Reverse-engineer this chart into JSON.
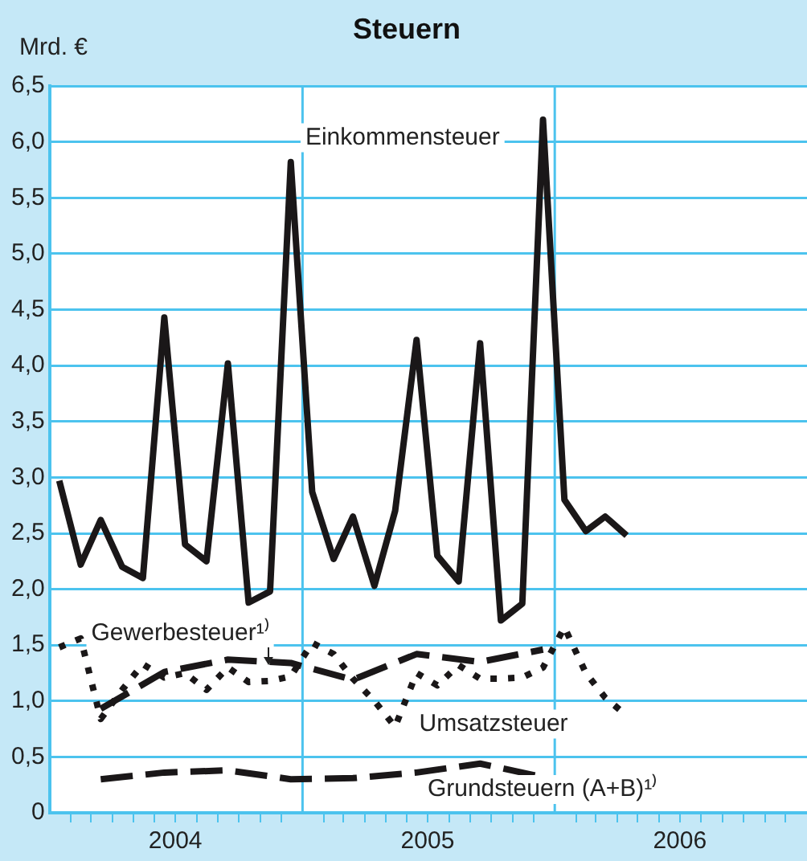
{
  "chart_data": {
    "type": "line",
    "title": "Steuern",
    "ylabel": "Mrd. €",
    "xlim": [
      "2004-01-01",
      "2007-01-01"
    ],
    "xticks": [
      {
        "value": "2004-02-01",
        "label": null
      },
      {
        "value": "2004-03-01",
        "label": null
      },
      {
        "value": "2004-04-01",
        "label": null
      },
      {
        "value": "2004-05-01",
        "label": null
      },
      {
        "value": "2004-06-01",
        "label": null
      },
      {
        "value": "2004-07-01",
        "label": "2004"
      },
      {
        "value": "2004-08-01",
        "label": null
      },
      {
        "value": "2004-09-01",
        "label": null
      },
      {
        "value": "2004-10-01",
        "label": null
      },
      {
        "value": "2004-11-01",
        "label": null
      },
      {
        "value": "2004-12-01",
        "label": null
      },
      {
        "value": "2005-02-01",
        "label": null
      },
      {
        "value": "2005-03-01",
        "label": null
      },
      {
        "value": "2005-04-01",
        "label": null
      },
      {
        "value": "2005-05-01",
        "label": null
      },
      {
        "value": "2005-06-01",
        "label": null
      },
      {
        "value": "2005-07-01",
        "label": "2005"
      },
      {
        "value": "2005-08-01",
        "label": null
      },
      {
        "value": "2005-09-01",
        "label": null
      },
      {
        "value": "2005-10-01",
        "label": null
      },
      {
        "value": "2005-11-01",
        "label": null
      },
      {
        "value": "2005-12-01",
        "label": null
      },
      {
        "value": "2006-02-01",
        "label": null
      },
      {
        "value": "2006-03-01",
        "label": null
      },
      {
        "value": "2006-04-01",
        "label": null
      },
      {
        "value": "2006-05-01",
        "label": null
      },
      {
        "value": "2006-06-01",
        "label": null
      },
      {
        "value": "2006-07-01",
        "label": "2006"
      },
      {
        "value": "2006-08-01",
        "label": null
      },
      {
        "value": "2006-09-01",
        "label": null
      },
      {
        "value": "2006-10-01",
        "label": null
      },
      {
        "value": "2006-11-01",
        "label": null
      },
      {
        "value": "2006-12-01",
        "label": null
      }
    ],
    "ylim": [
      0,
      6.5
    ],
    "yticks": [
      0,
      {
        "value": 0.5,
        "label": "0,5"
      },
      {
        "value": 1,
        "label": "1,0"
      },
      {
        "value": 1.5,
        "label": "1,5"
      },
      {
        "value": 2,
        "label": "2,0"
      },
      {
        "value": 2.5,
        "label": "2,5"
      },
      {
        "value": 3,
        "label": "3,0"
      },
      {
        "value": 3.5,
        "label": "3,5"
      },
      {
        "value": 4,
        "label": "4,0"
      },
      {
        "value": 4.5,
        "label": "4,5"
      },
      {
        "value": 5,
        "label": "5,0"
      },
      {
        "value": 5.5,
        "label": "5,5"
      },
      {
        "value": 6,
        "label": "6,0"
      },
      {
        "value": 6.5,
        "label": "6,5"
      }
    ],
    "grid": "y",
    "legend": false,
    "marker": "none",
    "ref_lines": [
      {
        "axis": "x",
        "value": "2005-01-01",
        "color": "#4cc3ee"
      },
      {
        "axis": "x",
        "value": "2006-01-01",
        "color": "#4cc3ee"
      }
    ],
    "series": [
      {
        "name": "Einkommensteuer",
        "color": "#1a1718",
        "line_style": "solid",
        "x": [
          "2004-01-15",
          "2004-02-15",
          "2004-03-15",
          "2004-04-15",
          "2004-05-15",
          "2004-06-15",
          "2004-07-15",
          "2004-08-15",
          "2004-09-15",
          "2004-10-15",
          "2004-11-15",
          "2004-12-15",
          "2005-01-15",
          "2005-02-15",
          "2005-03-15",
          "2005-04-15",
          "2005-05-15",
          "2005-06-15",
          "2005-07-15",
          "2005-08-15",
          "2005-09-15",
          "2005-10-15",
          "2005-11-15",
          "2005-12-15",
          "2006-01-15",
          "2006-02-15",
          "2006-03-15",
          "2006-04-15"
        ],
        "values": [
          2.97,
          2.22,
          2.62,
          2.2,
          2.1,
          4.43,
          2.4,
          2.25,
          4.02,
          1.88,
          1.98,
          5.82,
          2.87,
          2.27,
          2.65,
          2.03,
          2.7,
          4.23,
          2.3,
          2.07,
          4.2,
          1.72,
          1.87,
          6.2,
          2.8,
          2.52,
          2.65,
          2.48
        ]
      },
      {
        "name": "Gewerbesteuer¹⁾",
        "color": "#1a1718",
        "line_style": "dashed",
        "x": [
          "2004-03-15",
          "2004-06-15",
          "2004-09-15",
          "2004-12-15",
          "2005-03-15",
          "2005-06-15",
          "2005-09-15",
          "2005-12-15"
        ],
        "values": [
          0.93,
          1.26,
          1.37,
          1.34,
          1.19,
          1.42,
          1.35,
          1.46
        ]
      },
      {
        "name": "Umsatzsteuer",
        "color": "#1a1718",
        "line_style": "dotted",
        "x": [
          "2004-01-15",
          "2004-02-15",
          "2004-03-15",
          "2004-04-15",
          "2004-05-15",
          "2004-06-15",
          "2004-07-15",
          "2004-08-15",
          "2004-09-15",
          "2004-10-15",
          "2004-11-15",
          "2004-12-15",
          "2005-01-15",
          "2005-02-15",
          "2005-03-15",
          "2005-04-15",
          "2005-05-15",
          "2005-06-15",
          "2005-07-15",
          "2005-08-15",
          "2005-09-15",
          "2005-10-15",
          "2005-11-15",
          "2005-12-15",
          "2006-01-15",
          "2006-02-15",
          "2006-03-15",
          "2006-04-15"
        ],
        "values": [
          1.48,
          1.56,
          0.84,
          1.1,
          1.33,
          1.21,
          1.25,
          1.1,
          1.3,
          1.17,
          1.18,
          1.22,
          1.52,
          1.42,
          1.2,
          1.0,
          0.77,
          1.25,
          1.14,
          1.32,
          1.2,
          1.2,
          1.21,
          1.3,
          1.66,
          1.25,
          1.03,
          0.87
        ]
      },
      {
        "name": "Grundsteuern (A+B)¹⁾",
        "color": "#1a1718",
        "line_style": "dashed",
        "x": [
          "2004-03-15",
          "2004-06-15",
          "2004-09-15",
          "2004-12-15",
          "2005-03-15",
          "2005-06-15",
          "2005-09-15",
          "2005-12-15"
        ],
        "values": [
          0.3,
          0.36,
          0.38,
          0.3,
          0.31,
          0.36,
          0.44,
          0.32
        ]
      }
    ]
  }
}
